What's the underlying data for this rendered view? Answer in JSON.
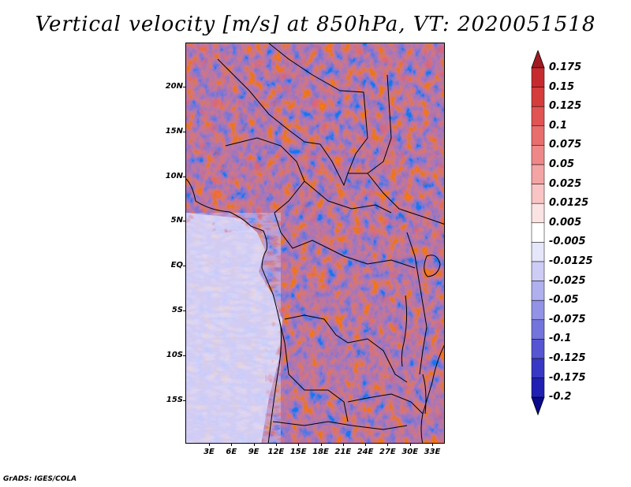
{
  "title": "Vertical velocity [m/s] at 850hPa, VT: 2020051518",
  "footer": "GrADS: IGES/COLA",
  "map": {
    "lat_labels": [
      "20N",
      "15N",
      "10N",
      "5N",
      "EQ",
      "5S",
      "10S",
      "15S"
    ],
    "lon_labels": [
      "3E",
      "6E",
      "9E",
      "12E",
      "15E",
      "18E",
      "21E",
      "24E",
      "27E",
      "30E",
      "33E"
    ]
  },
  "colorbar": {
    "labels": [
      "0.175",
      "0.15",
      "0.125",
      "0.1",
      "0.075",
      "0.05",
      "0.025",
      "0.0125",
      "0.005",
      "-0.005",
      "-0.0125",
      "-0.025",
      "-0.05",
      "-0.075",
      "-0.1",
      "-0.125",
      "-0.175",
      "-0.2"
    ],
    "colors": [
      "#b01a25",
      "#c52a2f",
      "#d53c3c",
      "#e05454",
      "#e86d6d",
      "#ee8888",
      "#f3a4a4",
      "#f8c4c4",
      "#fce3e3",
      "#ffffff",
      "#e6e6fb",
      "#ccccf5",
      "#b0b0ee",
      "#9292e6",
      "#7474dd",
      "#5656d2",
      "#3838c4",
      "#2020b2",
      "#10109a"
    ],
    "top_color": "#a01a22",
    "bottom_color": "#0a0a8a"
  }
}
